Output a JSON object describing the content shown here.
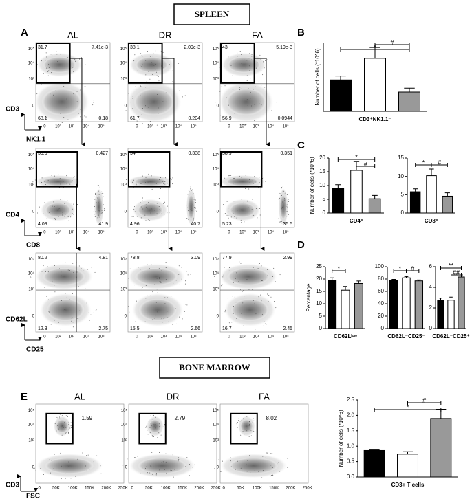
{
  "headers": {
    "spleen": "SPLEEN",
    "bone_marrow": "BONE MARROW"
  },
  "panel_labels": [
    "A",
    "B",
    "C",
    "D",
    "E"
  ],
  "flow": {
    "columns": [
      "AL",
      "DR",
      "FA"
    ],
    "y_ticks": [
      "10⁵",
      "10⁴",
      "10³",
      "0"
    ],
    "x_ticks": [
      "0",
      "10²",
      "10³",
      "10⁴",
      "10⁵"
    ],
    "rows": [
      {
        "y_label": "CD3",
        "x_label": "NK1.1",
        "quadrants": [
          [
            "31.7",
            "7.41e-3",
            "68.1",
            "0.18"
          ],
          [
            "38.1",
            "2.09e-3",
            "61.7",
            "0.204"
          ],
          [
            "43",
            "5.19e-3",
            "56.9",
            "0.0944"
          ]
        ]
      },
      {
        "y_label": "CD4",
        "x_label": "CD8",
        "quadrants": [
          [
            "53.5",
            "0.427",
            "4.09",
            "41.9"
          ],
          [
            "54",
            "0.338",
            "4.96",
            "40.7"
          ],
          [
            "58.9",
            "0.351",
            "5.23",
            "35.5"
          ]
        ]
      },
      {
        "y_label": "CD62L",
        "x_label": "CD25",
        "quadrants": [
          [
            "80.2",
            "4.81",
            "12.3",
            "2.75"
          ],
          [
            "78.8",
            "3.09",
            "15.5",
            "2.66"
          ],
          [
            "77.9",
            "2.99",
            "16.7",
            "2.45"
          ]
        ]
      }
    ]
  },
  "bm_flow": {
    "columns": [
      "AL",
      "DR",
      "FA"
    ],
    "gates": [
      "1.59",
      "2.79",
      "8.02"
    ],
    "y_label": "CD3",
    "x_label": "FSC",
    "y_ticks": [
      "10⁵",
      "10⁴",
      "10³",
      "0"
    ],
    "x_ticks": [
      "0",
      "50K",
      "100K",
      "150K",
      "200K",
      "250K"
    ]
  },
  "bars": {
    "colors": [
      "#000000",
      "#ffffff",
      "#999999"
    ],
    "charts": [
      {
        "ylabel": "Number of cells (*10^6)",
        "ylim": [
          0,
          35
        ],
        "values": [
          16,
          27,
          9.8
        ],
        "errors": [
          2,
          5.5,
          2
        ],
        "xlabel": "CD3⁺NK1.1⁻",
        "annotations": [
          "*",
          "#"
        ]
      },
      {
        "ylabel": "Number of cells (*10^6)",
        "ylim": [
          0,
          20
        ],
        "yticks": [
          0,
          5,
          10,
          15,
          20
        ],
        "values": [
          9,
          15.5,
          5.2
        ],
        "errors": [
          1.3,
          3.3,
          1.2
        ],
        "xlabel": "CD4⁺",
        "annotations": [
          "*",
          "#"
        ]
      },
      {
        "ylim": [
          0,
          15
        ],
        "yticks": [
          0,
          5,
          10,
          15
        ],
        "values": [
          5.8,
          10.2,
          4.6
        ],
        "errors": [
          0.8,
          1.8,
          0.9
        ],
        "xlabel": "CD8⁺",
        "annotations": [
          "*",
          "#"
        ]
      },
      {
        "ylabel": "Percentage",
        "ylim": [
          0,
          25
        ],
        "yticks": [
          0,
          5,
          10,
          15,
          20,
          25
        ],
        "values": [
          19.5,
          15.5,
          18.2
        ],
        "errors": [
          1,
          1.5,
          1
        ],
        "xlabel": "CD62Lˡᵒʷ",
        "annotations": [
          "*"
        ]
      },
      {
        "ylim": [
          0,
          100
        ],
        "yticks": [
          0,
          20,
          40,
          60,
          80,
          100
        ],
        "values": [
          78,
          82,
          77
        ],
        "errors": [
          1.5,
          2,
          1.5
        ],
        "xlabel": "CD62L⁻CD25⁻",
        "annotations": [
          "*",
          "#"
        ]
      },
      {
        "ylim": [
          0,
          6
        ],
        "yticks": [
          0,
          2,
          4,
          6
        ],
        "values": [
          2.75,
          2.75,
          5
        ],
        "errors": [
          0.2,
          0.3,
          0.2
        ],
        "xlabel": "CD62L⁻CD25⁺",
        "annotations": [
          "**",
          "##"
        ]
      },
      {
        "ylabel": "Number of cells (*10^6)",
        "ylim": [
          0,
          2.5
        ],
        "yticks": [
          {
            "value": 0,
            "label": "0.0"
          },
          0.5,
          {
            "value": 1,
            "label": "1.0"
          },
          1.5,
          {
            "value": 2,
            "label": "2.0"
          },
          2.5
        ],
        "values": [
          0.86,
          0.74,
          1.9
        ],
        "errors": [
          0.02,
          0.08,
          0.3
        ],
        "xlabel": "CD3+ T cells",
        "annotations": [
          "*",
          "#"
        ]
      }
    ]
  }
}
